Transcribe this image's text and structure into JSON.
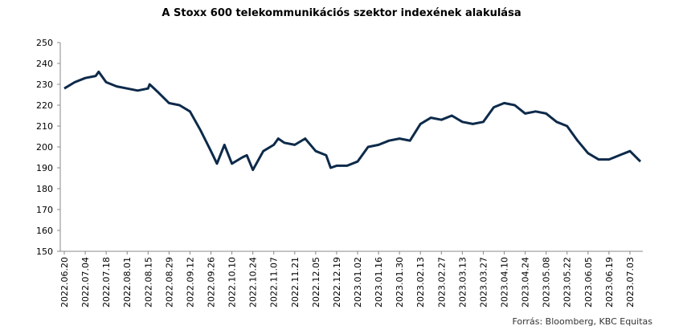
{
  "chart_data": {
    "type": "line",
    "title": "A Stoxx 600 telekommunikációs szektor indexének alakulása",
    "source": "Forrás: Bloomberg, KBC Equitas",
    "x": [
      "2022.06.20",
      "2022.06.27",
      "2022.07.04",
      "2022.07.11",
      "2022.07.13",
      "2022.07.18",
      "2022.07.25",
      "2022.08.01",
      "2022.08.08",
      "2022.08.15",
      "2022.08.16",
      "2022.08.22",
      "2022.08.29",
      "2022.09.05",
      "2022.09.12",
      "2022.09.19",
      "2022.09.26",
      "2022.09.30",
      "2022.10.05",
      "2022.10.10",
      "2022.10.17",
      "2022.10.20",
      "2022.10.24",
      "2022.10.31",
      "2022.11.07",
      "2022.11.10",
      "2022.11.14",
      "2022.11.21",
      "2022.11.28",
      "2022.12.05",
      "2022.12.12",
      "2022.12.15",
      "2022.12.19",
      "2022.12.26",
      "2023.01.02",
      "2023.01.09",
      "2023.01.16",
      "2023.01.23",
      "2023.01.30",
      "2023.02.06",
      "2023.02.13",
      "2023.02.20",
      "2023.02.27",
      "2023.03.06",
      "2023.03.13",
      "2023.03.20",
      "2023.03.27",
      "2023.04.03",
      "2023.04.10",
      "2023.04.17",
      "2023.04.24",
      "2023.05.01",
      "2023.05.08",
      "2023.05.15",
      "2023.05.22",
      "2023.05.29",
      "2023.06.05",
      "2023.06.12",
      "2023.06.19",
      "2023.06.26",
      "2023.07.03",
      "2023.07.10"
    ],
    "series": [
      {
        "name": "Stoxx 600 telekommunikáció",
        "color": "#0d2a4a",
        "values": [
          228,
          231,
          233,
          234,
          236,
          231,
          229,
          228,
          227,
          228,
          230,
          226,
          221,
          220,
          217,
          208,
          198,
          192,
          201,
          192,
          195,
          196,
          189,
          198,
          201,
          204,
          202,
          201,
          204,
          198,
          196,
          190,
          191,
          191,
          193,
          200,
          201,
          203,
          204,
          203,
          211,
          214,
          213,
          215,
          212,
          211,
          212,
          219,
          221,
          220,
          216,
          217,
          216,
          212,
          210,
          203,
          197,
          194,
          194,
          196,
          198,
          193
        ]
      }
    ],
    "xlim": [
      "2022.06.20",
      "2023.07.10"
    ],
    "xticks": [
      "2022.06.20",
      "2022.07.04",
      "2022.07.18",
      "2022.08.01",
      "2022.08.15",
      "2022.08.29",
      "2022.09.12",
      "2022.09.26",
      "2022.10.10",
      "2022.10.24",
      "2022.11.07",
      "2022.11.21",
      "2022.12.05",
      "2022.12.19",
      "2023.01.02",
      "2023.01.16",
      "2023.01.30",
      "2023.02.13",
      "2023.02.27",
      "2023.03.13",
      "2023.03.27",
      "2023.04.10",
      "2023.04.24",
      "2023.05.08",
      "2023.05.22",
      "2023.06.05",
      "2023.06.19",
      "2023.07.03"
    ],
    "ylim": [
      150,
      250
    ],
    "yticks": [
      150,
      160,
      170,
      180,
      190,
      200,
      210,
      220,
      230,
      240,
      250
    ],
    "grid": false
  }
}
